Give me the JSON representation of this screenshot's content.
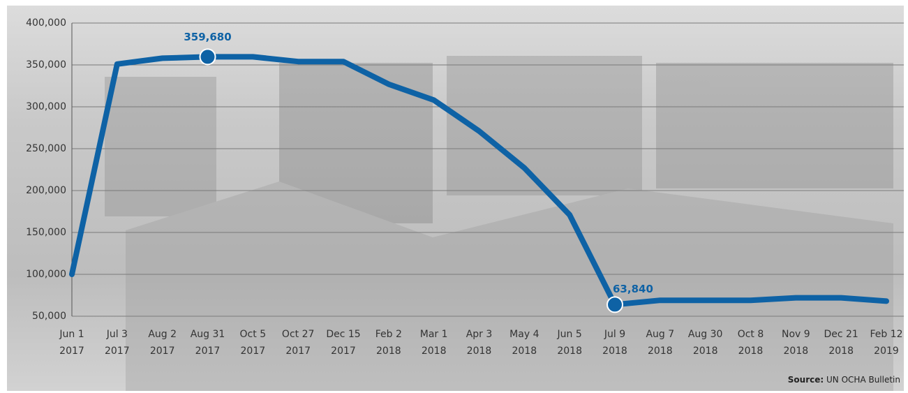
{
  "chart_data": {
    "type": "line",
    "categories": [
      [
        "Jun 1",
        "2017"
      ],
      [
        "Jul 3",
        "2017"
      ],
      [
        "Aug 2",
        "2017"
      ],
      [
        "Aug 31",
        "2017"
      ],
      [
        "Oct 5",
        "2017"
      ],
      [
        "Oct 27",
        "2017"
      ],
      [
        "Dec 15",
        "2017"
      ],
      [
        "Feb 2",
        "2018"
      ],
      [
        "Mar 1",
        "2018"
      ],
      [
        "Apr 3",
        "2018"
      ],
      [
        "May 4",
        "2018"
      ],
      [
        "Jun 5",
        "2018"
      ],
      [
        "Jul 9",
        "2018"
      ],
      [
        "Aug 7",
        "2018"
      ],
      [
        "Aug 30",
        "2018"
      ],
      [
        "Oct 8",
        "2018"
      ],
      [
        "Nov 9",
        "2018"
      ],
      [
        "Dec 21",
        "2018"
      ],
      [
        "Feb 12",
        "2019"
      ]
    ],
    "series": [
      {
        "color": "#0e62a5",
        "values": [
          100000,
          351000,
          358000,
          359680,
          359680,
          354000,
          354000,
          327000,
          308000,
          271000,
          227000,
          171000,
          63840,
          69000,
          69000,
          69000,
          72000,
          72000,
          68000
        ],
        "value_labels": [
          null,
          null,
          null,
          "359,680",
          null,
          null,
          null,
          null,
          null,
          null,
          null,
          null,
          "63,840",
          null,
          null,
          null,
          null,
          null,
          null
        ]
      }
    ],
    "ylim": [
      50000,
      400000
    ],
    "yticks": [
      {
        "value": 50000,
        "label": "50,000"
      },
      {
        "value": 100000,
        "label": "100,000"
      },
      {
        "value": 150000,
        "label": "150,000"
      },
      {
        "value": 200000,
        "label": "200,000"
      },
      {
        "value": 250000,
        "label": "250,000"
      },
      {
        "value": 300000,
        "label": "300,000"
      },
      {
        "value": 350000,
        "label": "350,000"
      },
      {
        "value": 400000,
        "label": "400,000"
      }
    ],
    "grid": true,
    "source": {
      "label": "Source:",
      "text": "UN OCHA Bulletin"
    }
  }
}
